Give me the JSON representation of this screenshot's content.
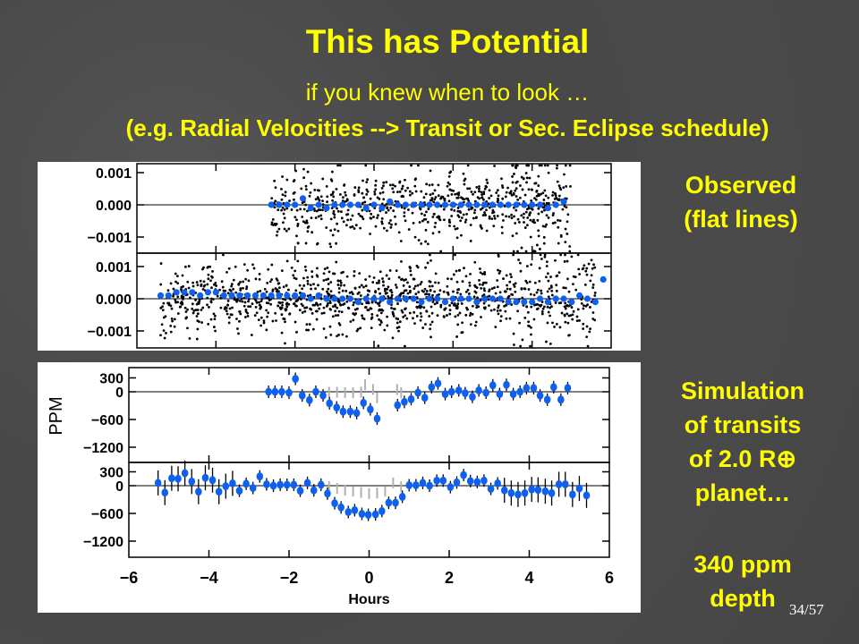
{
  "slide": {
    "title": "This has Potential",
    "subtitle": "if you knew when to look …",
    "subtitle2": "(e.g. Radial Velocities --> Transit or Sec. Eclipse schedule)",
    "page": "34/57"
  },
  "side": {
    "observed": [
      "Observed",
      "(flat lines)"
    ],
    "simulation": [
      "Simulation",
      "of transits",
      "of 2.0 R⊕",
      "planet…"
    ],
    "depth": [
      "340 ppm",
      "depth"
    ]
  },
  "colors": {
    "text": "#ffff00",
    "binned": "#1060f0",
    "raw": "#000000",
    "model": "#b0b0b0"
  },
  "chart_data": [
    {
      "type": "scatter",
      "title": "Observed",
      "xlim": [
        -6,
        6
      ],
      "ylim": [
        -0.0015,
        0.0015
      ],
      "yticks": [
        "0.001",
        "0.000",
        "−0.001"
      ],
      "panels": [
        {
          "raw": {
            "x_range": [
              -2.6,
              5.0
            ],
            "count": 700,
            "std": 0.0005
          },
          "binned_x_start": -2.6,
          "binned_step": 0.2,
          "binned": [
            0.0,
            0.0,
            0.0,
            0.0,
            0.0002,
            -0.0001,
            0.0,
            -0.0001,
            0.0,
            0.0,
            0.0,
            0.0,
            -0.0001,
            0.0,
            -0.0001,
            0.0001,
            0.0,
            0.0,
            0.0,
            0.0,
            0.0,
            0.0,
            0.0,
            0.0,
            0.0,
            0.0,
            0.0,
            0.0,
            0.0,
            0.0,
            0.0,
            0.0,
            0.0,
            0.0,
            0.0,
            -0.0001,
            0.0,
            0.0001
          ]
        },
        {
          "raw": {
            "x_range": [
              -5.4,
              5.6
            ],
            "count": 1100,
            "std": 0.0005
          },
          "binned_x_start": -5.4,
          "binned_step": 0.2,
          "binned": [
            0.0001,
            0.0001,
            0.0002,
            0.0002,
            0.0002,
            0.0001,
            0.0002,
            0.0002,
            0.0001,
            0.0001,
            0.0001,
            0.0001,
            0.0001,
            0.0001,
            0.0001,
            0.0001,
            0.0001,
            0.0001,
            0.0001,
            0.0,
            0.0001,
            0.0,
            0.0,
            0.0,
            0.0,
            -0.0001,
            0.0,
            0.0,
            0.0,
            -0.0001,
            0.0,
            0.0,
            0.0,
            -0.0001,
            0.0,
            0.0,
            -0.0001,
            0.0,
            0.0,
            0.0,
            -0.0001,
            0.0,
            0.0,
            0.0,
            -0.0001,
            -0.0001,
            -0.0001,
            -0.0001,
            0.0,
            -0.0001,
            0.0,
            0.0,
            -0.0001,
            0.0001,
            0.0,
            -0.0001,
            0.0006
          ]
        }
      ]
    },
    {
      "type": "scatter",
      "title": "Simulation",
      "xlabel": "Hours",
      "ylabel": "PPM",
      "xlim": [
        -6,
        6
      ],
      "ylim": [
        -1500,
        450
      ],
      "xticks": [
        "−6",
        "−4",
        "−2",
        "0",
        "2",
        "4",
        "6"
      ],
      "yticks": [
        "300",
        "0",
        "−600",
        "−1200"
      ],
      "panels": [
        {
          "x": [
            -2.51,
            -2.35,
            -2.18,
            -2.0,
            -1.84,
            -1.67,
            -1.49,
            -1.33,
            -1.15,
            -0.99,
            -0.81,
            -0.65,
            -0.47,
            -0.31,
            -0.14,
            0.03,
            0.2,
            0.71,
            0.88,
            1.05,
            1.22,
            1.39,
            1.56,
            1.72,
            1.9,
            2.06,
            2.24,
            2.4,
            2.58,
            2.74,
            2.92,
            3.09,
            3.26,
            3.43,
            3.6,
            3.77,
            3.93,
            4.11,
            4.27,
            4.45,
            4.61,
            4.79,
            4.96
          ],
          "y": [
            0,
            0,
            0,
            -20,
            280,
            -80,
            -180,
            0,
            -80,
            -250,
            -340,
            -430,
            -430,
            -460,
            -240,
            -380,
            -580,
            -290,
            -220,
            -160,
            -20,
            -130,
            100,
            180,
            -50,
            0,
            30,
            -30,
            -110,
            30,
            -20,
            140,
            -50,
            150,
            -50,
            0,
            80,
            80,
            -80,
            -170,
            100,
            -170,
            80
          ],
          "model_x": [
            -1.0,
            -0.8,
            -0.6,
            -0.4,
            -0.2,
            -0.1,
            0.1,
            0.2,
            0.7,
            0.8
          ],
          "model_y": [
            -10,
            -10,
            -20,
            -20,
            -10,
            150,
            50,
            -130,
            50,
            -20
          ]
        },
        {
          "x": [
            -5.27,
            -5.1,
            -4.93,
            -4.77,
            -4.6,
            -4.43,
            -4.26,
            -4.09,
            -3.91,
            -3.75,
            -3.58,
            -3.41,
            -3.24,
            -3.07,
            -2.9,
            -2.73,
            -2.56,
            -2.39,
            -2.22,
            -2.05,
            -1.88,
            -1.72,
            -1.54,
            -1.38,
            -1.2,
            -1.04,
            -0.86,
            -0.7,
            -0.52,
            -0.36,
            -0.18,
            -0.02,
            0.16,
            0.32,
            0.49,
            0.66,
            0.83,
            1.0,
            1.17,
            1.34,
            1.51,
            1.69,
            1.85,
            2.03,
            2.19,
            2.36,
            2.53,
            2.7,
            2.87,
            3.04,
            3.21,
            3.38,
            3.55,
            3.72,
            3.89,
            4.06,
            4.22,
            4.4,
            4.56,
            4.74,
            4.9,
            5.08,
            5.25,
            5.43
          ],
          "y": [
            60,
            -150,
            160,
            150,
            270,
            90,
            -130,
            170,
            120,
            -130,
            -10,
            50,
            -110,
            40,
            -50,
            200,
            30,
            0,
            20,
            20,
            20,
            -110,
            60,
            -100,
            20,
            -170,
            -380,
            -470,
            -570,
            -530,
            -610,
            -630,
            -620,
            -550,
            -370,
            -370,
            -240,
            10,
            10,
            60,
            0,
            110,
            110,
            -30,
            70,
            230,
            100,
            80,
            110,
            -70,
            50,
            -100,
            -160,
            -190,
            -160,
            -80,
            -90,
            -120,
            -160,
            30,
            30,
            -190,
            -60,
            -210
          ],
          "model_x": [
            -1.0,
            -0.8,
            -0.6,
            -0.4,
            -0.2,
            0.0,
            0.2,
            0.4,
            0.6,
            0.8
          ],
          "model_y": [
            -20,
            -60,
            -100,
            -120,
            -150,
            -170,
            -160,
            -120,
            60,
            -20
          ]
        }
      ]
    }
  ]
}
